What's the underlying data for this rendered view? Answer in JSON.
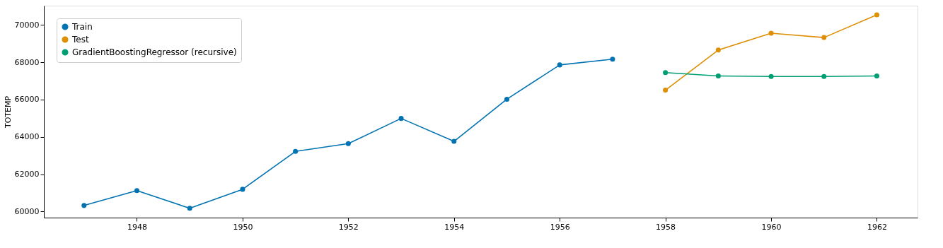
{
  "chart_data": {
    "type": "line",
    "ylabel": "TOTEMP",
    "xlim": [
      1946.24,
      1962.77
    ],
    "xticks": [
      1948,
      1950,
      1952,
      1954,
      1956,
      1958,
      1960,
      1962
    ],
    "ylim": [
      59670,
      71040
    ],
    "yticks": [
      60000,
      62000,
      64000,
      66000,
      68000,
      70000
    ],
    "series": [
      {
        "name": "Train",
        "color": "#0173b2",
        "x": [
          1947,
          1948,
          1949,
          1950,
          1951,
          1952,
          1953,
          1954,
          1955,
          1956,
          1957
        ],
        "values": [
          60320,
          61120,
          60170,
          61190,
          63220,
          63640,
          64990,
          63760,
          66020,
          67860,
          68170
        ]
      },
      {
        "name": "Test",
        "color": "#de8f05",
        "x": [
          1958,
          1959,
          1960,
          1961,
          1962
        ],
        "values": [
          66510,
          68660,
          69560,
          69330,
          70550
        ]
      },
      {
        "name": "GradientBoostingRegressor (recursive)",
        "color": "#029e73",
        "x": [
          1958,
          1959,
          1960,
          1961,
          1962
        ],
        "values": [
          67450,
          67270,
          67240,
          67240,
          67270
        ]
      }
    ],
    "marker": "circle",
    "line_style": "solid",
    "legend": "top left",
    "grid": false
  }
}
